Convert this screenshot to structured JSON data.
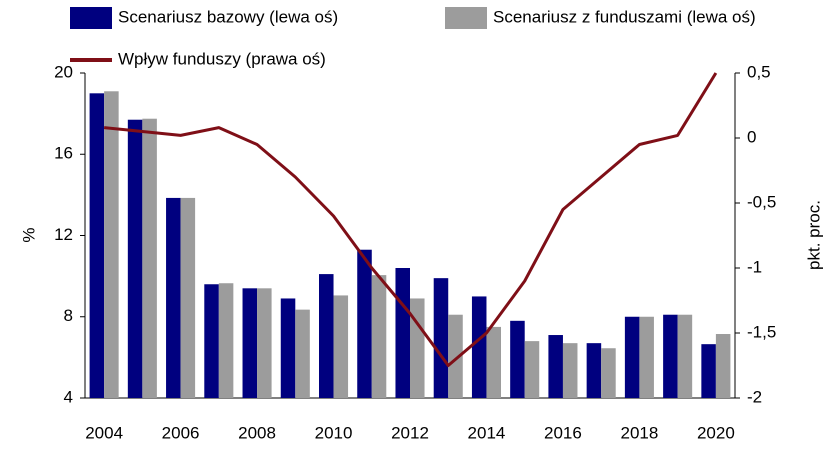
{
  "chart_data": {
    "type": "bar",
    "categories": [
      "2004",
      null,
      "2006",
      null,
      "2008",
      null,
      "2010",
      null,
      "2012",
      null,
      "2014",
      null,
      "2016",
      null,
      "2018",
      null,
      "2020"
    ],
    "series": [
      {
        "name": "Scenariusz bazowy (lewa oś)",
        "color": "#00007f",
        "values": [
          19.0,
          17.7,
          13.85,
          9.6,
          9.4,
          8.9,
          10.1,
          11.3,
          10.4,
          9.9,
          9.0,
          7.8,
          7.1,
          6.7,
          8.0,
          8.1,
          6.65
        ]
      },
      {
        "name": "Scenariusz z funduszami (lewa oś)",
        "color": "#9c9c9c",
        "values": [
          19.1,
          17.75,
          13.85,
          9.65,
          9.4,
          8.35,
          9.05,
          10.05,
          8.9,
          8.1,
          7.5,
          6.8,
          6.7,
          6.45,
          8.0,
          8.1,
          7.15
        ]
      },
      {
        "name": "Wpływ funduszy (prawa oś)",
        "color": "#7f0f17",
        "type": "line",
        "axis": "y2",
        "values": [
          0.08,
          0.05,
          0.02,
          0.08,
          -0.05,
          -0.3,
          -0.6,
          -1.0,
          -1.35,
          -1.75,
          -1.5,
          -1.1,
          -0.55,
          -0.3,
          -0.05,
          0.02,
          0.5
        ]
      }
    ],
    "ylabel": "%",
    "y2label": "pkt. proc.",
    "ylim": [
      4,
      20
    ],
    "yticks": [
      4,
      8,
      12,
      16,
      20
    ],
    "y2lim": [
      -2,
      0.5
    ],
    "y2ticks": [
      -2,
      {
        "value": -1.5,
        "label": "-1,5"
      },
      -1,
      {
        "value": -0.5,
        "label": "-0,5"
      },
      0,
      {
        "value": 0.5,
        "label": "0,5"
      }
    ],
    "legend": "top"
  }
}
